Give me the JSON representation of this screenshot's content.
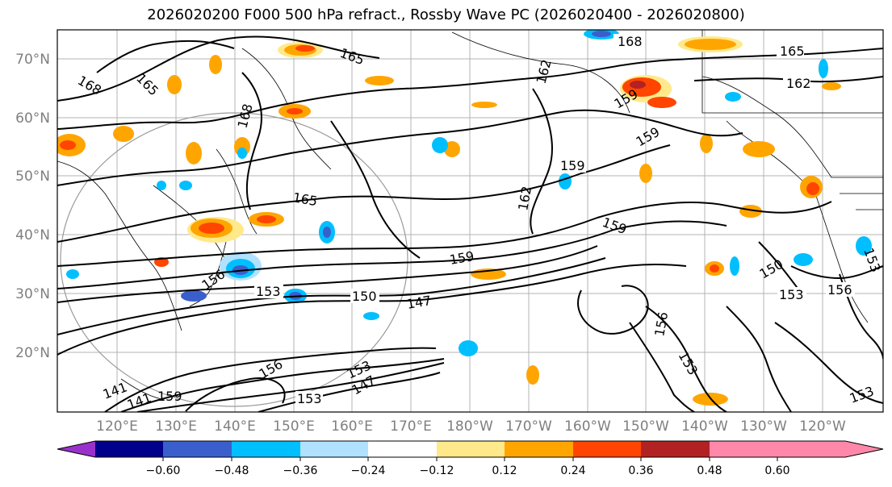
{
  "title": "2026020200 F000 500 hPa refract., Rossby Wave PC (2026020400 - 2026020800)",
  "map": {
    "lat_labels": [
      "70°N",
      "60°N",
      "50°N",
      "40°N",
      "30°N",
      "20°N"
    ],
    "lon_labels": [
      "120°E",
      "130°E",
      "140°E",
      "150°E",
      "160°E",
      "170°E",
      "180°W",
      "170°W",
      "160°W",
      "150°W",
      "140°W",
      "130°W",
      "120°W"
    ],
    "contour_labels": [
      "168",
      "165",
      "165",
      "168",
      "165",
      "159",
      "162",
      "168",
      "165",
      "162",
      "159",
      "159",
      "162",
      "159",
      "159",
      "156",
      "153",
      "150",
      "147",
      "156",
      "153",
      "150",
      "153",
      "156",
      "153",
      "153",
      "147",
      "141",
      "141",
      "159",
      "156",
      "153",
      "153"
    ]
  },
  "colorbar": {
    "colors": [
      "#9932cc",
      "#00008b",
      "#3a5fcd",
      "#00bfff",
      "#b0e2ff",
      "#ffffff",
      "#ffe98a",
      "#ffa500",
      "#ff4500",
      "#b22222",
      "#ff88aa"
    ],
    "ticks": [
      "−0.60",
      "−0.48",
      "−0.36",
      "−0.24",
      "−0.12",
      "0.12",
      "0.24",
      "0.36",
      "0.48",
      "0.60"
    ]
  }
}
